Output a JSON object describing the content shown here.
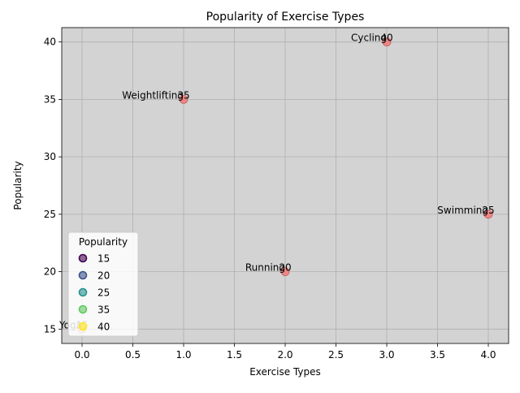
{
  "chart_data": {
    "type": "scatter",
    "title": "Popularity of Exercise Types",
    "xlabel": "Exercise Types",
    "ylabel": "Popularity",
    "xlim": [
      -0.2,
      4.2
    ],
    "ylim": [
      13.75,
      41.25
    ],
    "xticks": [
      "0.0",
      "0.5",
      "1.0",
      "1.5",
      "2.0",
      "2.5",
      "3.0",
      "3.5",
      "4.0"
    ],
    "yticks": [
      "15",
      "20",
      "25",
      "30",
      "35",
      "40"
    ],
    "grid": true,
    "plot_background": "#d3d3d3",
    "marker_color": "#f08080",
    "points": [
      {
        "x": 0,
        "y": 15,
        "label": "Yoga",
        "value_label": "15"
      },
      {
        "x": 1,
        "y": 35,
        "label": "Weightlifting",
        "value_label": "35"
      },
      {
        "x": 2,
        "y": 20,
        "label": "Running",
        "value_label": "20"
      },
      {
        "x": 3,
        "y": 40,
        "label": "Cycling",
        "value_label": "40"
      },
      {
        "x": 4,
        "y": 25,
        "label": "Swimming",
        "value_label": "25"
      }
    ],
    "legend": {
      "title": "Popularity",
      "placement": "lower-left",
      "entries": [
        {
          "label": "15",
          "color": "#440154"
        },
        {
          "label": "20",
          "color": "#3b528b"
        },
        {
          "label": "25",
          "color": "#21918c"
        },
        {
          "label": "35",
          "color": "#5ec962"
        },
        {
          "label": "40",
          "color": "#fde725"
        }
      ]
    }
  }
}
